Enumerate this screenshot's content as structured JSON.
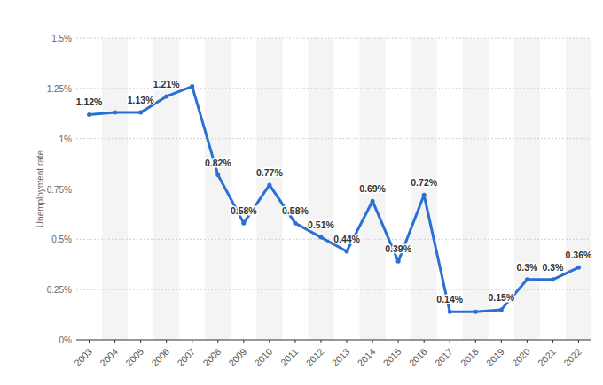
{
  "chart_data": {
    "type": "line",
    "y_label": "Unemployment rate",
    "categories": [
      "2003",
      "2004",
      "2005",
      "2006",
      "2007",
      "2008",
      "2009",
      "2010",
      "2011",
      "2012",
      "2013",
      "2014",
      "2015",
      "2016",
      "2017",
      "2018",
      "2019",
      "2020",
      "2021",
      "2022"
    ],
    "values": [
      1.12,
      1.13,
      1.13,
      1.21,
      1.26,
      0.82,
      0.58,
      0.77,
      0.58,
      0.51,
      0.44,
      0.69,
      0.39,
      0.72,
      0.14,
      0.14,
      0.15,
      0.3,
      0.3,
      0.36
    ],
    "value_labels": [
      "1.12%",
      null,
      "1.13%",
      "1.21%",
      null,
      "0.82%",
      "0.58%",
      "0.77%",
      "0.58%",
      "0.51%",
      "0.44%",
      "0.69%",
      "0.39%",
      "0.72%",
      "0.14%",
      null,
      "0.15%",
      "0.3%",
      "0.3%",
      "0.36%"
    ],
    "color": "#2a6fd4",
    "marker": "circle",
    "ylim": [
      0,
      1.5
    ],
    "yticks": [
      {
        "value": 0,
        "label": "0%"
      },
      {
        "value": 0.25,
        "label": "0.25%"
      },
      {
        "value": 0.5,
        "label": "0.5%"
      },
      {
        "value": 0.75,
        "label": "0.75%"
      },
      {
        "value": 1,
        "label": "1%"
      },
      {
        "value": 1.25,
        "label": "1.25%"
      },
      {
        "value": 1.5,
        "label": "1.5%"
      }
    ],
    "grid": true,
    "data_labels": true
  }
}
